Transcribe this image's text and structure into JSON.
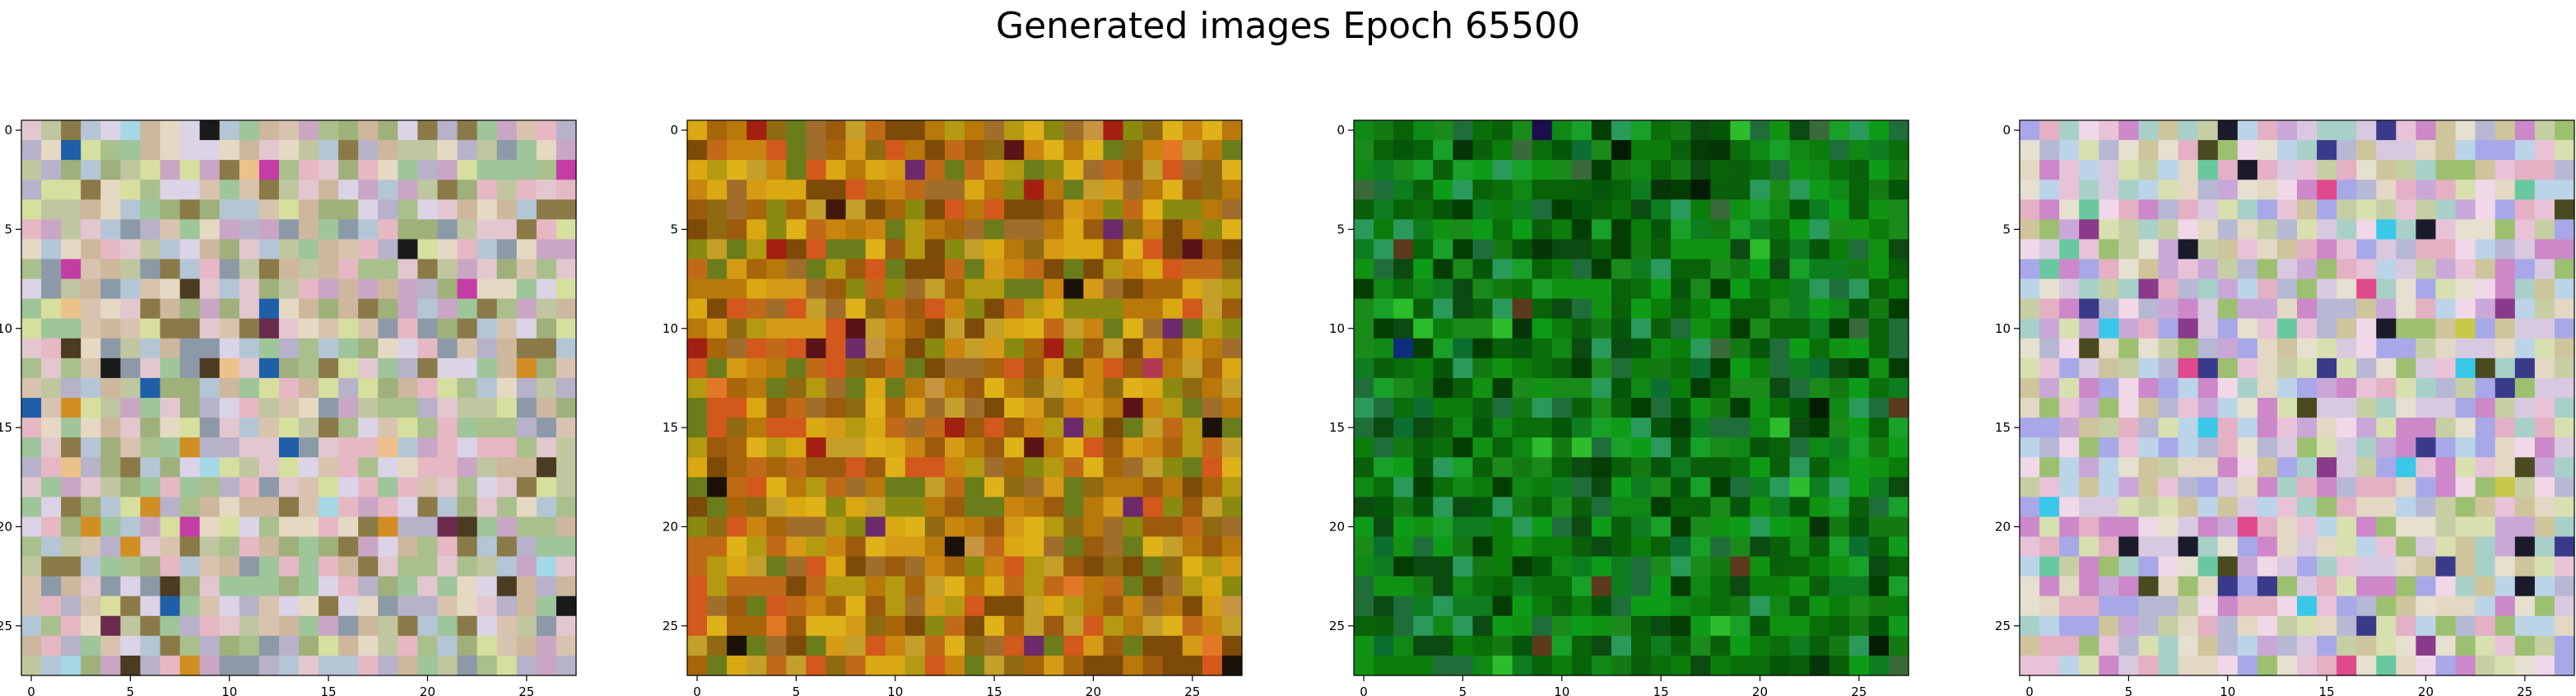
{
  "figure": {
    "title": "Generated images Epoch 65500"
  },
  "chart_data": [
    {
      "type": "heatmap",
      "description_of_content": "28x28 RGB pixel image",
      "x_ticks": [
        0,
        5,
        10,
        15,
        20,
        25
      ],
      "y_ticks": [
        0,
        5,
        10,
        15,
        20,
        25
      ],
      "xlim": [
        -0.5,
        27.5
      ],
      "ylim": [
        27.5,
        -0.5
      ],
      "grid": false,
      "palette": [
        "#d8c4ae",
        "#c0c6a0",
        "#e3c7cf",
        "#b7b2c9",
        "#a9c08c",
        "#cdb79d",
        "#dbd3e6",
        "#9fb07a",
        "#e6d9c4",
        "#c9a7c4",
        "#b4c6d6",
        "#8c9aa8",
        "#e5b8c4",
        "#9fc59a",
        "#d6df9e",
        "#8a7a48",
        "#4b3b20",
        "#1f5fa8",
        "#c33da4",
        "#a5d7e6",
        "#d18e23",
        "#1a1a1a",
        "#6a2b4d",
        "#ecc28a"
      ]
    },
    {
      "type": "heatmap",
      "description_of_content": "28x28 RGB pixel image",
      "x_ticks": [
        0,
        5,
        10,
        15,
        20,
        25
      ],
      "y_ticks": [
        0,
        5,
        10,
        15,
        20,
        25
      ],
      "xlim": [
        -0.5,
        27.5
      ],
      "ylim": [
        27.5,
        -0.5
      ],
      "grid": false,
      "palette": [
        "#c9850f",
        "#b8780a",
        "#d69b16",
        "#a8650a",
        "#c06a18",
        "#8f6a10",
        "#d9a812",
        "#b49a10",
        "#9c5a0c",
        "#e0b21a",
        "#a06e2a",
        "#7e4a08",
        "#c4a02a",
        "#6b7d1a",
        "#8a8a10",
        "#d2581c",
        "#a31f12",
        "#5a1418",
        "#3f1a0a",
        "#e27826",
        "#b03a52",
        "#6c2a6a",
        "#c79540",
        "#1a1208"
      ]
    },
    {
      "type": "heatmap",
      "description_of_content": "28x28 RGB pixel image",
      "x_ticks": [
        0,
        5,
        10,
        15,
        20,
        25
      ],
      "y_ticks": [
        0,
        5,
        10,
        15,
        20,
        25
      ],
      "xlim": [
        -0.5,
        27.5
      ],
      "ylim": [
        27.5,
        -0.5
      ],
      "grid": false,
      "palette": [
        "#0b7d0b",
        "#0a6e0a",
        "#129212",
        "#086208",
        "#1a8a1a",
        "#05560a",
        "#0e9c18",
        "#137a13",
        "#0a5f0a",
        "#18a028",
        "#0d7d20",
        "#0f8815",
        "#043d04",
        "#0b4a10",
        "#1f6e3a",
        "#2a9a5a",
        "#0d2e7a",
        "#1c0e4a",
        "#5c3a1c",
        "#3a6a3a",
        "#07350a",
        "#0c6e30",
        "#2cbc2c",
        "#031c04"
      ]
    },
    {
      "type": "heatmap",
      "description_of_content": "28x28 RGB pixel image",
      "x_ticks": [
        0,
        5,
        10,
        15,
        20,
        25
      ],
      "y_ticks": [
        0,
        5,
        10,
        15,
        20,
        25
      ],
      "xlim": [
        -0.5,
        27.5
      ],
      "ylim": [
        27.5,
        -0.5
      ],
      "grid": false,
      "palette": [
        "#e2d8c4",
        "#d9c9e0",
        "#c6cfa4",
        "#e8c3d8",
        "#b6b8d4",
        "#d8e0b0",
        "#c9a8d8",
        "#e3b0c4",
        "#a8d0c8",
        "#cfc59c",
        "#bcd4e8",
        "#f0d8e8",
        "#9cc070",
        "#e6e0d0",
        "#cc88c8",
        "#a8a8e8",
        "#e04a8c",
        "#3a3a8a",
        "#1a1a2a",
        "#3ac8e8",
        "#c8c84a",
        "#4a4a20",
        "#8a3a8a",
        "#6ac8a0"
      ]
    }
  ]
}
